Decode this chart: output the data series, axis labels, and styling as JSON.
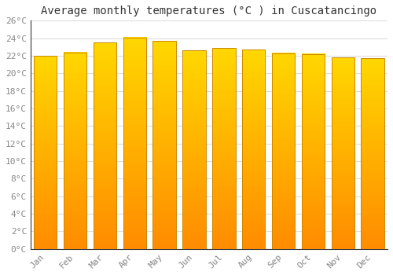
{
  "months": [
    "Jan",
    "Feb",
    "Mar",
    "Apr",
    "May",
    "Jun",
    "Jul",
    "Aug",
    "Sep",
    "Oct",
    "Nov",
    "Dec"
  ],
  "temperatures": [
    22.0,
    22.4,
    23.5,
    24.1,
    23.7,
    22.6,
    22.9,
    22.7,
    22.3,
    22.2,
    21.8,
    21.7
  ],
  "bar_color_top": "#FFC200",
  "bar_color_bottom": "#FF8C00",
  "bar_edge_color": "#CC8800",
  "background_color": "#FFFFFF",
  "grid_color": "#DDDDDD",
  "title": "Average monthly temperatures (°C ) in Cuscatancingo",
  "ylim": [
    0,
    26
  ],
  "ytick_step": 2,
  "title_fontsize": 10,
  "tick_fontsize": 8,
  "tick_color": "#888888",
  "axis_color": "#333333",
  "font_family": "monospace",
  "bar_width": 0.78
}
